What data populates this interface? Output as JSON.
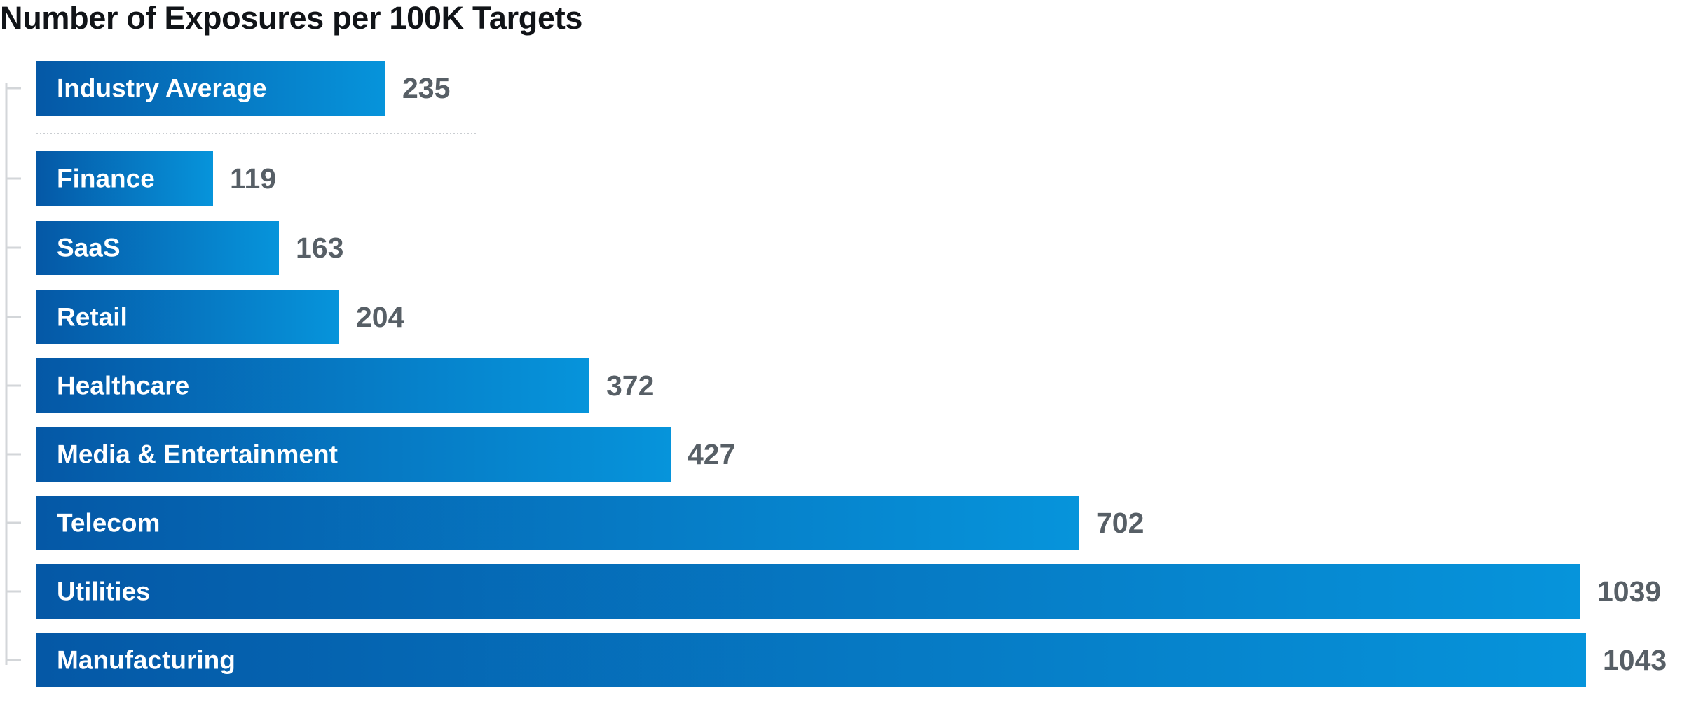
{
  "chart_data": {
    "type": "bar",
    "orientation": "horizontal",
    "title": "Number of Exposures per 100K Targets",
    "categories": [
      "Industry Average",
      "Finance",
      "SaaS",
      "Retail",
      "Healthcare",
      "Media & Entertainment",
      "Telecom",
      "Utilities",
      "Manufacturing"
    ],
    "values": [
      235,
      119,
      163,
      204,
      372,
      427,
      702,
      1039,
      1043
    ],
    "value_labels": [
      "235",
      "119",
      "163",
      "204",
      "372",
      "427",
      "702",
      "1039",
      "1043"
    ],
    "reference_category": "Industry Average",
    "xlabel": "",
    "ylabel": "",
    "grid": false,
    "legend": "none",
    "colors": {
      "bar_gradient_start": "#0558a6",
      "bar_gradient_end": "#0694db",
      "label_text": "#ffffff",
      "value_text": "#575f66",
      "axis_bracket": "#d3d6d9",
      "separator": "#c9cdd1",
      "title_text": "#111418"
    }
  }
}
